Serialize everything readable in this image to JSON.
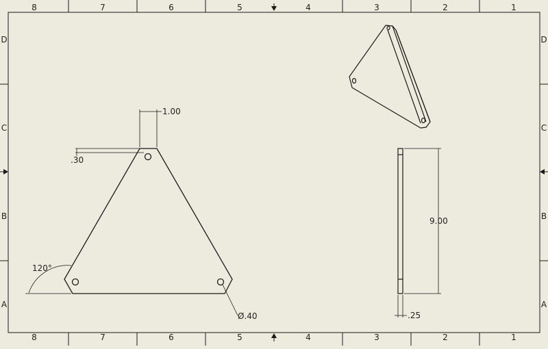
{
  "border": {
    "columns": [
      "8",
      "7",
      "6",
      "5",
      "4",
      "3",
      "2",
      "1"
    ],
    "rows": [
      "D",
      "C",
      "B",
      "A"
    ]
  },
  "dimensions": {
    "hole_spacing": "1.00",
    "hole_offset": ".30",
    "corner_angle": "120°",
    "hole_diameter": "Ø.40",
    "side_height": "9.00",
    "thickness": ".25"
  },
  "colors": {
    "paper": "#ecebde",
    "line": "#1a1a1a"
  }
}
